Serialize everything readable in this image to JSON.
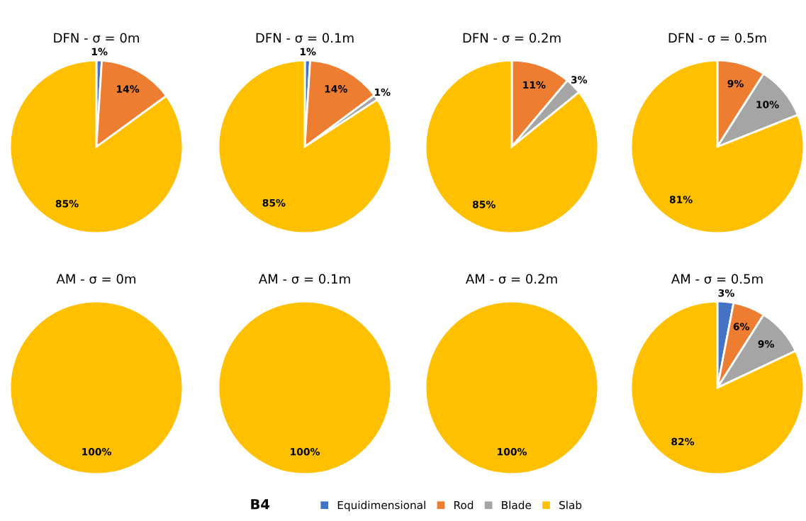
{
  "chart_data": [
    {
      "type": "pie",
      "title": "DFN - σ = 0m",
      "categories": [
        "Equidimensional",
        "Rod",
        "Blade",
        "Slab"
      ],
      "values": [
        1,
        14,
        0,
        85
      ],
      "colors": [
        "#4472c4",
        "#ed7d31",
        "#a5a5a5",
        "#ffc000"
      ],
      "value_labels": [
        "1%",
        "14%",
        null,
        "85%"
      ],
      "legend": "bottom",
      "legend_title": "B4"
    },
    {
      "type": "pie",
      "title": "DFN - σ = 0.1m",
      "categories": [
        null,
        null,
        null,
        null
      ],
      "values": [
        1,
        14,
        1,
        85
      ],
      "colors": [
        "#4472c4",
        "#ed7d31",
        "#a5a5a5",
        "#ffc000"
      ],
      "value_labels": [
        "1%",
        "14%",
        "1%",
        "85%"
      ]
    },
    {
      "type": "pie",
      "title": "DFN - σ = 0.2m",
      "categories": [
        null,
        null,
        null,
        null
      ],
      "values": [
        0,
        11,
        3,
        85
      ],
      "colors": [
        "#4472c4",
        "#ed7d31",
        "#a5a5a5",
        "#ffc000"
      ],
      "value_labels": [
        null,
        "11%",
        "3%",
        "85%"
      ]
    },
    {
      "type": "pie",
      "title": "DFN - σ = 0.5m",
      "categories": [
        null,
        null,
        null,
        null
      ],
      "values": [
        0,
        9,
        10,
        81
      ],
      "colors": [
        "#4472c4",
        "#ed7d31",
        "#a5a5a5",
        "#ffc000"
      ],
      "value_labels": [
        null,
        "9%",
        "10%",
        "81%"
      ]
    },
    {
      "type": "pie",
      "title": "AM - σ = 0m",
      "categories": [
        null,
        null,
        null,
        null
      ],
      "values": [
        0,
        0,
        0,
        100
      ],
      "colors": [
        "#4472c4",
        "#ed7d31",
        "#a5a5a5",
        "#ffc000"
      ],
      "value_labels": [
        null,
        null,
        null,
        "100%"
      ]
    },
    {
      "type": "pie",
      "title": "AM - σ = 0.1m",
      "categories": [
        null,
        null,
        null,
        null
      ],
      "values": [
        0,
        0,
        0,
        100
      ],
      "colors": [
        "#4472c4",
        "#ed7d31",
        "#a5a5a5",
        "#ffc000"
      ],
      "value_labels": [
        null,
        null,
        null,
        "100%"
      ]
    },
    {
      "type": "pie",
      "title": "AM - σ = 0.2m",
      "categories": [
        null,
        null,
        null,
        null
      ],
      "values": [
        0,
        0,
        0,
        100
      ],
      "colors": [
        "#4472c4",
        "#ed7d31",
        "#a5a5a5",
        "#ffc000"
      ],
      "value_labels": [
        null,
        null,
        null,
        "100%"
      ]
    },
    {
      "type": "pie",
      "title": "AM - σ = 0.5m",
      "categories": [
        null,
        null,
        null,
        null
      ],
      "values": [
        3,
        6,
        9,
        82
      ],
      "colors": [
        "#4472c4",
        "#ed7d31",
        "#a5a5a5",
        "#ffc000"
      ],
      "value_labels": [
        "3%",
        "6%",
        "9%",
        "82%"
      ]
    }
  ]
}
